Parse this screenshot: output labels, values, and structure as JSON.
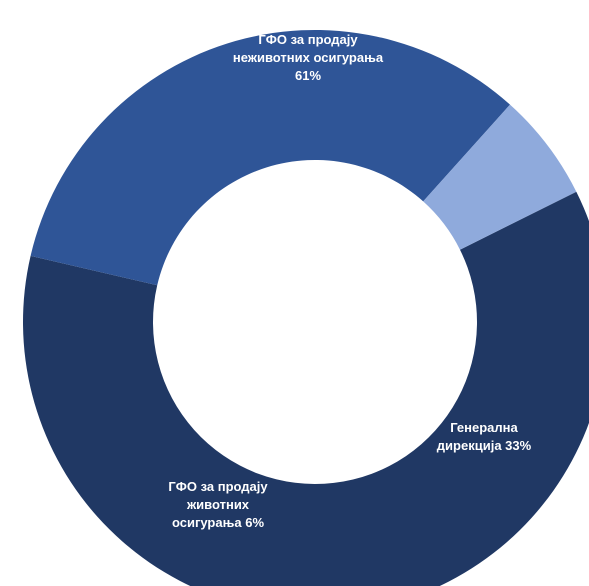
{
  "chart_data": {
    "type": "pie",
    "variant": "donut",
    "start_angle_deg": 63.5,
    "direction": "clockwise",
    "slices": [
      {
        "label_lines": [
          "ГФО за продају",
          "неживотних осигурања",
          "61%"
        ],
        "value": 61,
        "color": "#203864"
      },
      {
        "label_lines": [
          "Генерална",
          "дирекција 33%"
        ],
        "value": 33,
        "color": "#2f5597"
      },
      {
        "label_lines": [
          "ГФО за продају",
          "животних",
          "осигурања 6%"
        ],
        "value": 6,
        "color": "#8faadc"
      }
    ],
    "legend": "none"
  }
}
